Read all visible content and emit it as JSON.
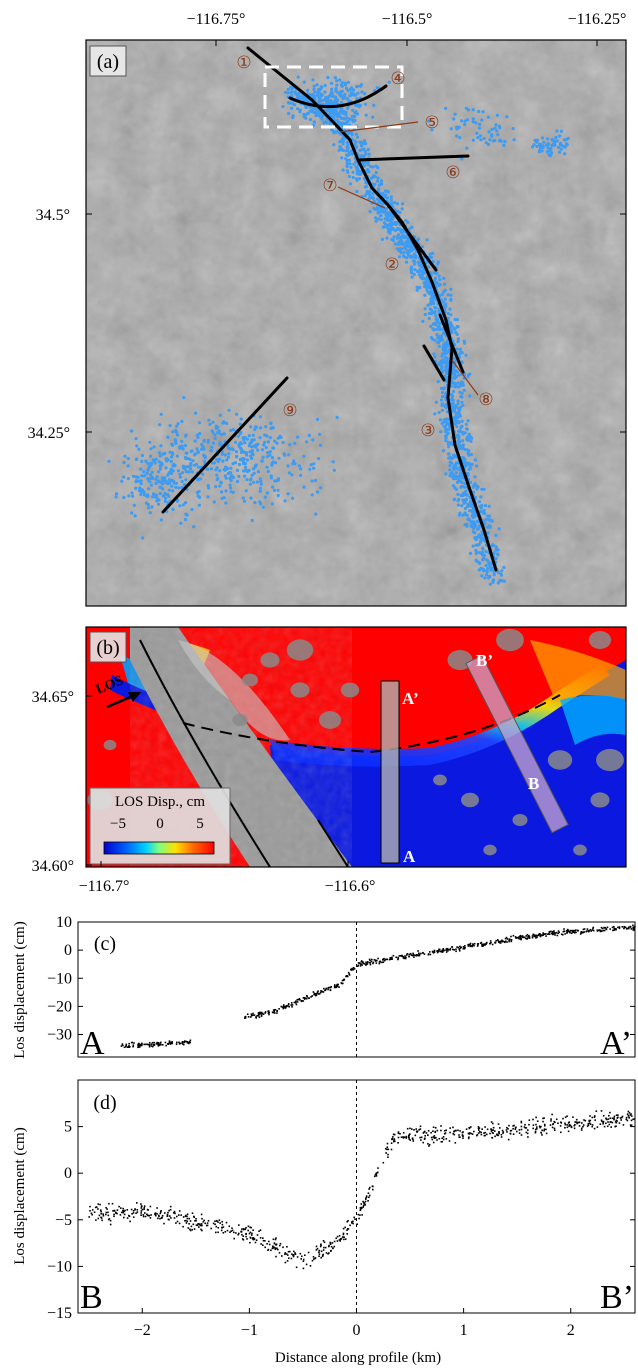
{
  "panel_a": {
    "label": "(a)",
    "xticks": [
      "−116.75°",
      "−116.5°",
      "−116.25°"
    ],
    "yticks": [
      "34.5°",
      "34.25°"
    ],
    "fault_markers": [
      "①",
      "②",
      "③",
      "④",
      "⑤",
      "⑥",
      "⑦",
      "⑧",
      "⑨"
    ]
  },
  "panel_b": {
    "label": "(b)",
    "xticks": [
      "−116.7°",
      "−116.6°"
    ],
    "yticks": [
      "34.65°",
      "34.60°"
    ],
    "los_arrow_label": "LOS",
    "colorbar_title": "LOS Disp., cm",
    "colorbar_ticks": [
      "−5",
      "0",
      "5"
    ],
    "profile_A_start": "A",
    "profile_A_end": "A’",
    "profile_B_start": "B",
    "profile_B_end": "B’"
  },
  "colors": {
    "map_gray": "#a9a9a9",
    "aftershock_blue": "#3d9bf2",
    "fault_line": "#000000",
    "marker_brown": "#8b3a1a",
    "disp_red": "#ff0000",
    "disp_blue": "#0a18e0",
    "profile_A_box": "#b0b0b0",
    "profile_B_box": "#c8a6cc"
  },
  "chart_data": [
    {
      "type": "scatter",
      "panel": "(c)",
      "ylabel": "Los displacement (cm)",
      "ylim": [
        -38,
        10
      ],
      "yticks": [
        "10",
        "0",
        "−10",
        "−20",
        "−30"
      ],
      "yticks_values": [
        10,
        0,
        -10,
        -20,
        -30
      ],
      "xlim": [
        -2.6,
        2.6
      ],
      "endpoint_left": "A",
      "endpoint_right": "A’",
      "segments": [
        {
          "x0": -2.2,
          "x1": -1.9,
          "y0": -34,
          "y1": -33.5
        },
        {
          "x0": -1.9,
          "x1": -1.55,
          "y0": -33.5,
          "y1": -32.5
        },
        {
          "x0": -1.05,
          "x1": -0.75,
          "y0": -24,
          "y1": -21.5
        },
        {
          "x0": -0.75,
          "x1": -0.15,
          "y0": -21.5,
          "y1": -12
        },
        {
          "x0": -0.15,
          "x1": 0.0,
          "y0": -12,
          "y1": -5
        },
        {
          "x0": 0.0,
          "x1": 0.5,
          "y0": -5,
          "y1": -2
        },
        {
          "x0": 0.5,
          "x1": 1.8,
          "y0": -2,
          "y1": 6
        },
        {
          "x0": 1.8,
          "x1": 2.6,
          "y0": 6,
          "y1": 8
        }
      ]
    },
    {
      "type": "scatter",
      "panel": "(d)",
      "ylabel": "Los displacement (cm)",
      "xlabel": "Distance along profile (km)",
      "ylim": [
        -15,
        10
      ],
      "yticks": [
        "5",
        "0",
        "−5",
        "−10",
        "−15"
      ],
      "yticks_values": [
        5,
        0,
        -5,
        -10,
        -15
      ],
      "xlim": [
        -2.6,
        2.6
      ],
      "xticks": [
        "−2",
        "−1",
        "0",
        "1",
        "2"
      ],
      "xticks_values": [
        -2,
        -1,
        0,
        1,
        2
      ],
      "endpoint_left": "B",
      "endpoint_right": "B’",
      "segments": [
        {
          "x0": -2.5,
          "x1": -2.0,
          "y0": -4.5,
          "y1": -4.0
        },
        {
          "x0": -2.0,
          "x1": -1.0,
          "y0": -4.0,
          "y1": -6.5
        },
        {
          "x0": -1.0,
          "x1": -0.5,
          "y0": -6.5,
          "y1": -9.5
        },
        {
          "x0": -0.5,
          "x1": -0.2,
          "y0": -9.5,
          "y1": -7.5
        },
        {
          "x0": -0.2,
          "x1": 0.05,
          "y0": -7.5,
          "y1": -4.0
        },
        {
          "x0": 0.05,
          "x1": 0.35,
          "y0": -4.0,
          "y1": 4.0
        },
        {
          "x0": 0.35,
          "x1": 1.3,
          "y0": 4.0,
          "y1": 4.5
        },
        {
          "x0": 1.3,
          "x1": 2.6,
          "y0": 4.5,
          "y1": 6.0
        }
      ]
    }
  ]
}
